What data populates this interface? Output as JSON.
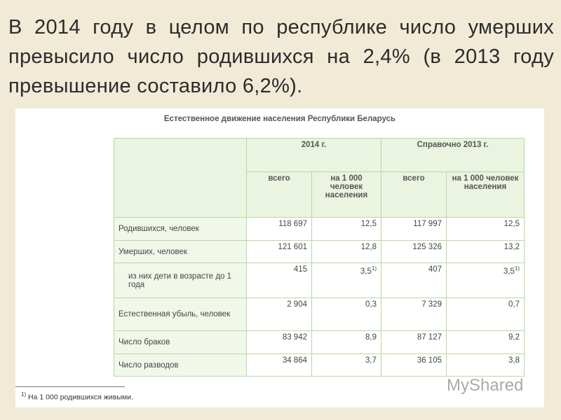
{
  "heading": "В 2014 году в целом по республике число умерших превысило число родившихся на 2,4% (в 2013 году превышение составило 6,2%).",
  "table": {
    "title": "Естественное движение населения Республики Беларусь",
    "groups": [
      "2014 г.",
      "Справочно 2013 г."
    ],
    "subheaders": [
      "всего",
      "на 1 000 человек населения",
      "всего",
      "на 1 000 человек населения"
    ],
    "rows": [
      [
        "Родившихся, человек",
        "118 697",
        "12,5",
        "117 997",
        "12,5"
      ],
      [
        "Умерших, человек",
        "121 601",
        "12,8",
        "125 326",
        "13,2"
      ],
      [
        "из них дети в возрасте до 1 года",
        "415",
        {
          "text": "3,5",
          "sup": "1)"
        },
        "407",
        {
          "text": "3,5",
          "sup": "1)"
        }
      ],
      [
        "Естественная убыль, человек",
        "2 904",
        "0,3",
        "7 329",
        "0,7"
      ],
      [
        "Число браков",
        "83 942",
        "8,9",
        "87 127",
        "9,2"
      ],
      [
        "Число разводов",
        "34 864",
        "3,7",
        "36 105",
        "3,8"
      ]
    ]
  },
  "footnote": {
    "sup": "1)",
    "text": "На 1 000 родившихся живыми."
  },
  "watermark": "MyShared"
}
